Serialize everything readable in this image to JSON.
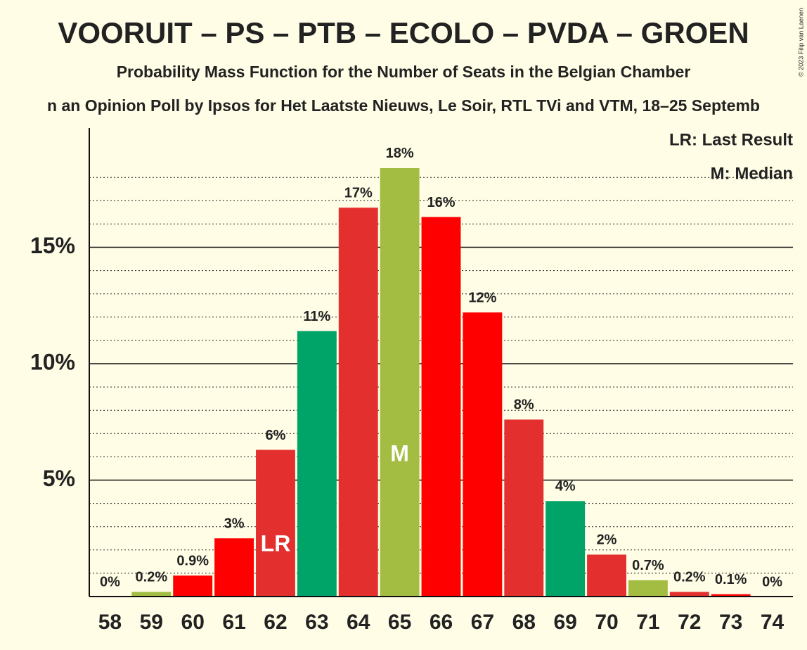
{
  "chart_data": {
    "type": "bar",
    "title": "VOORUIT – PS – PTB – ECOLO – PVDA – GROEN",
    "subtitle": "Probability Mass Function for the Number of Seats in the Belgian Chamber",
    "caption": "n an Opinion Poll by Ipsos for Het Laatste Nieuws, Le Soir, RTL TVi and VTM, 18–25 Septemb",
    "copyright": "© 2023 Filip van Laenen",
    "categories": [
      58,
      59,
      60,
      61,
      62,
      63,
      64,
      65,
      66,
      67,
      68,
      69,
      70,
      71,
      72,
      73,
      74
    ],
    "values": [
      0,
      0.2,
      0.9,
      2.5,
      6.3,
      11.4,
      16.7,
      18.4,
      16.3,
      12.2,
      7.6,
      4.1,
      1.8,
      0.7,
      0.2,
      0.1,
      0
    ],
    "value_labels": [
      "0%",
      "0.2%",
      "0.9%",
      "3%",
      "6%",
      "11%",
      "17%",
      "18%",
      "16%",
      "12%",
      "8%",
      "4%",
      "2%",
      "0.7%",
      "0.2%",
      "0.1%",
      "0%"
    ],
    "colors": [
      "#a3bd42",
      "#a3bd42",
      "#ff0000",
      "#ff0000",
      "#e3302f",
      "#00a468",
      "#e3302f",
      "#a3bd42",
      "#ff0000",
      "#ff0000",
      "#e3302f",
      "#00a468",
      "#e3302f",
      "#a3bd42",
      "#e3302f",
      "#ff0000",
      "#ff0000"
    ],
    "ylim": [
      0,
      20
    ],
    "yticks": [
      {
        "value": 5,
        "label": "5%"
      },
      {
        "value": 10,
        "label": "10%"
      },
      {
        "value": 15,
        "label": "15%"
      }
    ],
    "minor_yticks": [
      1,
      2,
      3,
      4,
      6,
      7,
      8,
      9,
      11,
      12,
      13,
      14,
      16,
      17,
      18
    ],
    "last_result": {
      "category": 62,
      "label": "LR"
    },
    "median": {
      "category": 65,
      "label": "M"
    },
    "legend": [
      "LR: Last Result",
      "M: Median"
    ]
  }
}
